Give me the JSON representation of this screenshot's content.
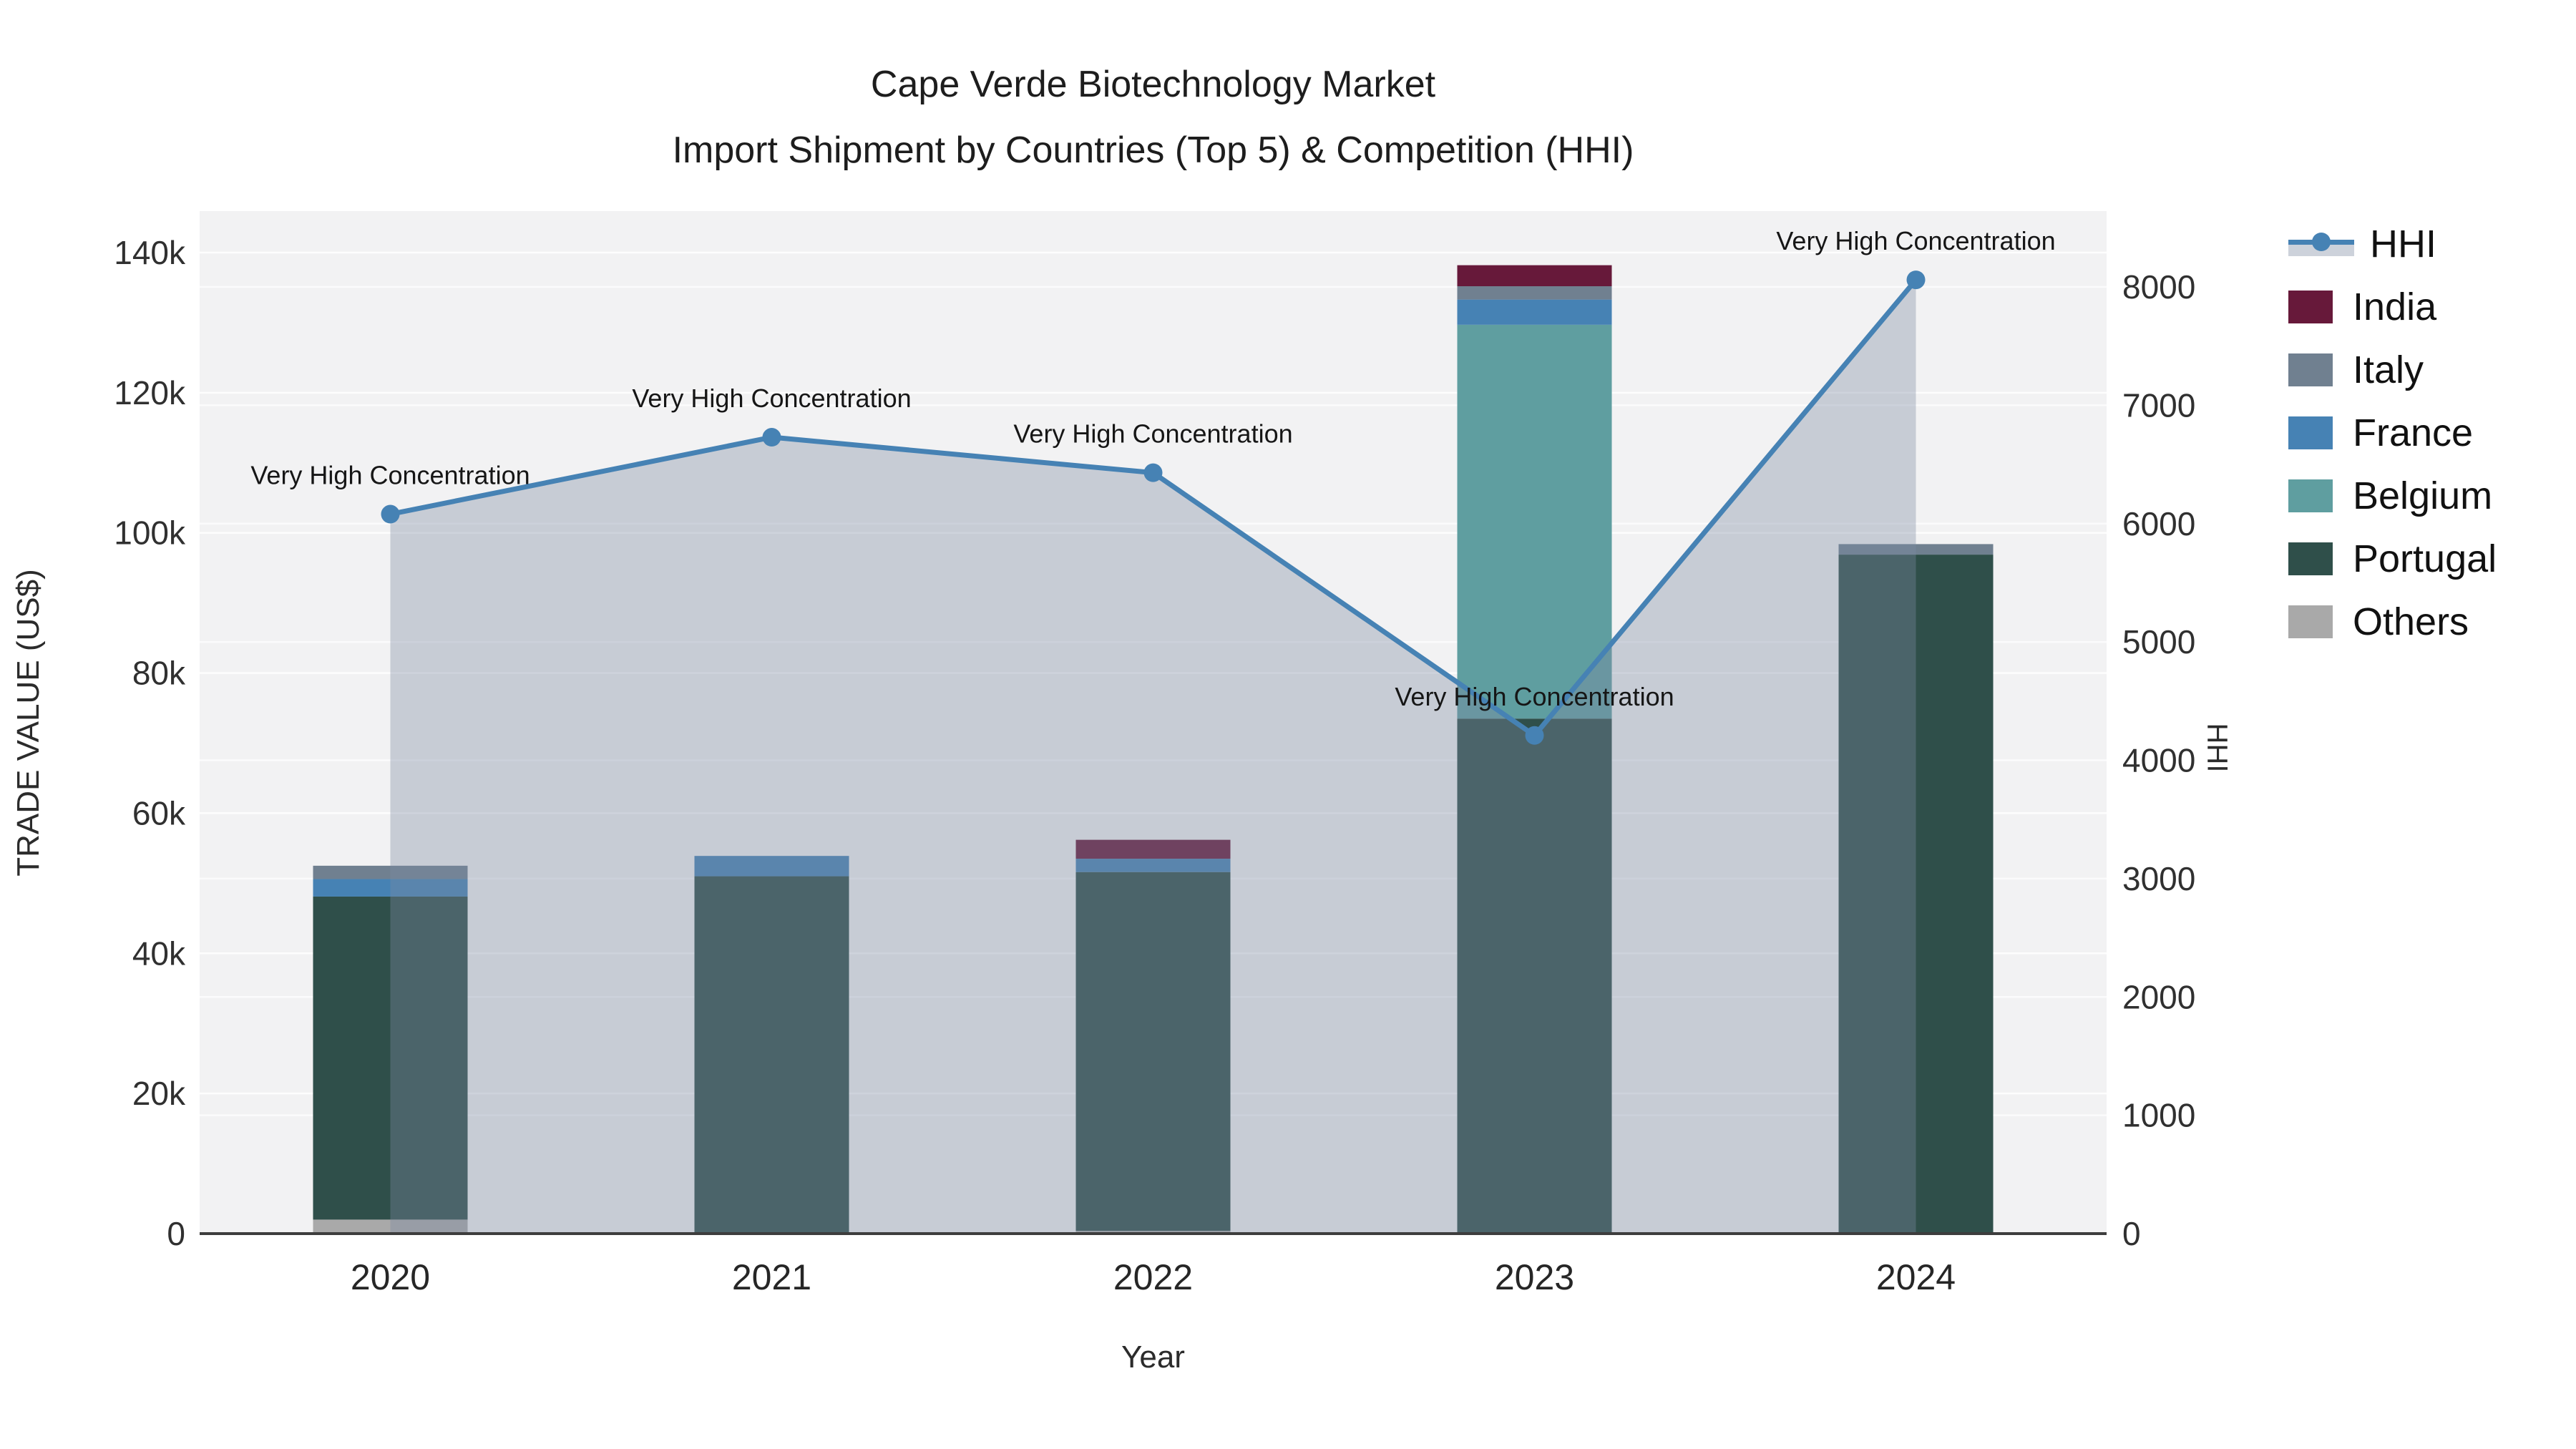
{
  "title": {
    "line1": "Cape Verde Biotechnology Market",
    "line2": "Import Shipment by Countries (Top 5) & Competition (HHI)"
  },
  "legend": {
    "items": [
      {
        "label": "HHI",
        "type": "line",
        "color": "#4682B4",
        "band": "#CDD2DB"
      },
      {
        "label": "India",
        "type": "swatch",
        "color": "#67193A"
      },
      {
        "label": "Italy",
        "type": "swatch",
        "color": "#708090"
      },
      {
        "label": "France",
        "type": "swatch",
        "color": "#4682B4"
      },
      {
        "label": "Belgium",
        "type": "swatch",
        "color": "#5F9EA0"
      },
      {
        "label": "Portugal",
        "type": "swatch",
        "color": "#2F4F4A"
      },
      {
        "label": "Others",
        "type": "swatch",
        "color": "#A9A9A9"
      }
    ]
  },
  "chart_data": {
    "type": "combo: stacked bar (left axis) + line with area (right axis)",
    "x": [
      "2020",
      "2021",
      "2022",
      "2023",
      "2024"
    ],
    "xlabel": "Year",
    "y_left": {
      "label": "TRADE VALUE (US$)",
      "ticks": [
        "0",
        "20k",
        "40k",
        "60k",
        "80k",
        "100k",
        "120k",
        "140k"
      ],
      "tick_values": [
        0,
        20000,
        40000,
        60000,
        80000,
        100000,
        120000,
        140000
      ],
      "max": 140000
    },
    "y_right": {
      "label": "HHI",
      "ticks": [
        "0",
        "1000",
        "2000",
        "3000",
        "4000",
        "5000",
        "6000",
        "7000",
        "8000"
      ],
      "tick_values": [
        0,
        1000,
        2000,
        3000,
        4000,
        5000,
        6000,
        7000,
        8000
      ],
      "max": 8000
    },
    "bar_series": [
      {
        "name": "Others",
        "color": "#A9A9A9",
        "values": [
          2000,
          0,
          400,
          0,
          0
        ]
      },
      {
        "name": "Portugal",
        "color": "#2F4F4A",
        "values": [
          46100,
          51000,
          51200,
          73500,
          96900
        ]
      },
      {
        "name": "Belgium",
        "color": "#5F9EA0",
        "values": [
          0,
          0,
          0,
          56200,
          0
        ]
      },
      {
        "name": "France",
        "color": "#4682B4",
        "values": [
          2500,
          2900,
          1900,
          3600,
          0
        ]
      },
      {
        "name": "Italy",
        "color": "#708090",
        "values": [
          1900,
          0,
          0,
          1900,
          1500
        ]
      },
      {
        "name": "India",
        "color": "#67193A",
        "values": [
          0,
          0,
          2700,
          3000,
          0
        ]
      }
    ],
    "bar_totals": [
      52500,
      53900,
      56200,
      138200,
      98400
    ],
    "line_series": {
      "name": "HHI",
      "color": "#4682B4",
      "area_fill": "rgba(125,139,162,0.37)",
      "values": [
        6080,
        6730,
        6430,
        4210,
        8060
      ]
    },
    "annotations": [
      {
        "x": "2020",
        "text": "Very High Concentration"
      },
      {
        "x": "2021",
        "text": "Very High Concentration"
      },
      {
        "x": "2022",
        "text": "Very High Concentration"
      },
      {
        "x": "2023",
        "text": "Very High Concentration"
      },
      {
        "x": "2024",
        "text": "Very High Concentration"
      }
    ],
    "legend_position": "right",
    "grid": true,
    "plot_background": "#F2F2F3"
  }
}
